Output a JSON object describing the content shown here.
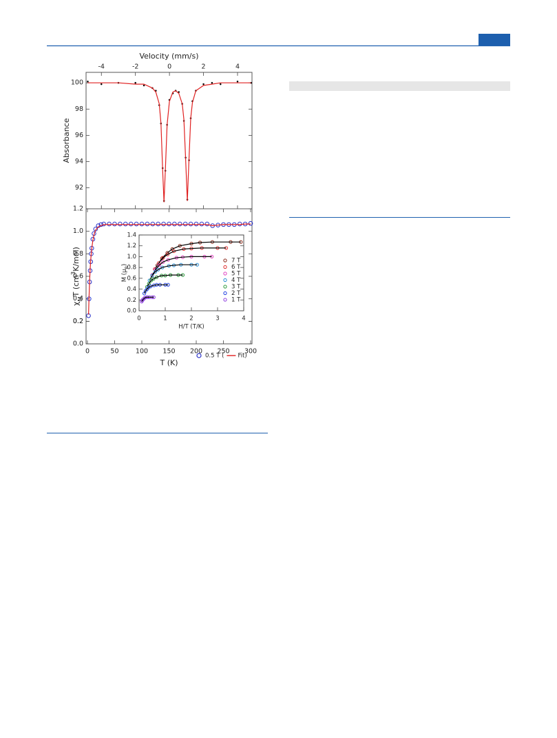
{
  "chart_data": [
    {
      "type": "scatter",
      "xlabel": "Velocity (mm/s)",
      "ylabel": "Absorbance",
      "xlim": [
        -4.9,
        4.85
      ],
      "ylim": [
        90.4,
        100.8
      ],
      "xticks": [
        -4,
        -2,
        0,
        2,
        4
      ],
      "yticks": [
        92,
        94,
        96,
        98,
        100
      ],
      "x": [
        -4.8,
        -4,
        -3,
        -2,
        -1.5,
        -1,
        -0.8,
        -0.6,
        -0.5,
        -0.4,
        -0.32,
        -0.24,
        -0.14,
        0,
        0.2,
        0.365,
        0.55,
        0.75,
        0.85,
        0.95,
        1.05,
        1.15,
        1.25,
        1.35,
        1.55,
        2,
        2.5,
        3,
        4,
        4.8
      ],
      "series": [
        {
          "color": "#000000",
          "marker": "dot",
          "values": [
            100.1,
            99.9,
            100.0,
            100.0,
            99.8,
            99.6,
            99.4,
            98.3,
            96.9,
            93.5,
            91.0,
            93.3,
            96.8,
            98.7,
            99.2,
            99.4,
            99.3,
            98.4,
            97.1,
            94.3,
            91.1,
            94.1,
            97.3,
            98.6,
            99.4,
            99.9,
            100.0,
            99.9,
            100.1,
            100.0
          ]
        },
        {
          "color": "#e02020",
          "marker": "line",
          "values": [
            100.0,
            100.0,
            100.0,
            99.9,
            99.9,
            99.6,
            99.3,
            98.4,
            96.9,
            93.4,
            90.9,
            93.4,
            96.8,
            98.6,
            99.3,
            99.4,
            99.2,
            98.4,
            97.2,
            94.2,
            91.0,
            94.2,
            97.3,
            98.5,
            99.4,
            99.8,
            99.9,
            100.0,
            100.0,
            100.0
          ]
        }
      ]
    },
    {
      "type": "scatter",
      "xlabel": "T (K)",
      "ylabel": [
        "χ",
        "M",
        "T (cm",
        "3",
        "K/mol)"
      ],
      "xlim": [
        -2.5,
        302.5
      ],
      "ylim": [
        0,
        1.2
      ],
      "xticks": [
        0,
        50,
        100,
        150,
        200,
        250,
        300
      ],
      "yticks": [
        {
          "value": 0,
          "label": "0.0"
        },
        0.2,
        0.4,
        0.6,
        0.8,
        {
          "value": 1,
          "label": "1.0"
        },
        0.2,
        1.2
      ],
      "legend": "lower right",
      "x": [
        2,
        3,
        4,
        5,
        6,
        7,
        8,
        10,
        12,
        15,
        20,
        25,
        30,
        40,
        50,
        60,
        70,
        80,
        90,
        100,
        110,
        120,
        130,
        140,
        150,
        160,
        170,
        180,
        190,
        200,
        210,
        220,
        230,
        240,
        250,
        260,
        270,
        280,
        290,
        300
      ],
      "series": [
        {
          "name": "0.5 T (",
          "color": "#2a32c8",
          "marker": "circle",
          "values": [
            0.25,
            0.4,
            0.55,
            0.65,
            0.73,
            0.8,
            0.85,
            0.93,
            0.98,
            1.02,
            1.05,
            1.06,
            1.065,
            1.065,
            1.065,
            1.065,
            1.065,
            1.065,
            1.065,
            1.065,
            1.065,
            1.065,
            1.065,
            1.065,
            1.065,
            1.065,
            1.065,
            1.065,
            1.065,
            1.065,
            1.065,
            1.065,
            1.05,
            1.055,
            1.06,
            1.06,
            1.06,
            1.065,
            1.065,
            1.07
          ]
        },
        {
          "name": "Fit)",
          "color": "#e02020",
          "marker": "line",
          "values": [
            0.26,
            0.41,
            0.55,
            0.66,
            0.74,
            0.8,
            0.85,
            0.92,
            0.97,
            1.01,
            1.04,
            1.05,
            1.06,
            1.06,
            1.06,
            1.06,
            1.06,
            1.06,
            1.06,
            1.06,
            1.06,
            1.06,
            1.06,
            1.06,
            1.06,
            1.06,
            1.06,
            1.06,
            1.06,
            1.06,
            1.06,
            1.06,
            1.05,
            1.055,
            1.06,
            1.06,
            1.06,
            1.06,
            1.065,
            1.065
          ]
        }
      ]
    },
    {
      "type": "scatter",
      "xlabel": "H/T (T/K)",
      "ylabel": [
        "M (μ",
        "B",
        ")"
      ],
      "xlim": [
        0,
        4
      ],
      "ylim": [
        0,
        1.4
      ],
      "xticks": [
        0,
        1,
        2,
        3,
        4
      ],
      "yticks": [
        {
          "value": 0,
          "label": "0.0"
        },
        0.2,
        0.4,
        0.6,
        0.8,
        {
          "value": 1,
          "label": "1.0"
        },
        1.2,
        1.4
      ],
      "legend": "center right",
      "fit_color": "#000000",
      "series": [
        {
          "name": "7 T",
          "color": "#8b2a1a",
          "marker": "circle",
          "x": [
            0.7,
            0.875,
            1.08,
            1.27,
            1.56,
            2.0,
            2.33,
            2.8,
            3.5,
            3.89
          ],
          "values": [
            0.84,
            0.97,
            1.07,
            1.14,
            1.2,
            1.24,
            1.26,
            1.27,
            1.27,
            1.27
          ]
        },
        {
          "name": "6 T",
          "color": "#e03030",
          "marker": "circle",
          "x": [
            0.6,
            0.75,
            0.92,
            1.09,
            1.33,
            1.71,
            2.0,
            2.4,
            3.0,
            3.33
          ],
          "values": [
            0.77,
            0.88,
            0.98,
            1.04,
            1.1,
            1.14,
            1.15,
            1.16,
            1.16,
            1.16
          ]
        },
        {
          "name": "5 T",
          "color": "#e040c0",
          "marker": "circle",
          "x": [
            0.5,
            0.625,
            0.77,
            0.91,
            1.11,
            1.43,
            1.67,
            2.0,
            2.5,
            2.78
          ],
          "values": [
            0.66,
            0.76,
            0.84,
            0.9,
            0.94,
            0.98,
            0.99,
            1.0,
            1.0,
            1.0
          ]
        },
        {
          "name": "4 T",
          "color": "#2a8fd6",
          "marker": "circle",
          "x": [
            0.4,
            0.5,
            0.62,
            0.73,
            0.89,
            1.14,
            1.33,
            1.6,
            2.0,
            2.22
          ],
          "values": [
            0.56,
            0.65,
            0.72,
            0.76,
            0.8,
            0.83,
            0.84,
            0.85,
            0.85,
            0.85
          ]
        },
        {
          "name": "3 T",
          "color": "#2a9a3a",
          "marker": "circle",
          "x": [
            0.3,
            0.375,
            0.46,
            0.55,
            0.67,
            0.86,
            1.0,
            1.2,
            1.5,
            1.67
          ],
          "values": [
            0.44,
            0.5,
            0.56,
            0.59,
            0.62,
            0.65,
            0.65,
            0.66,
            0.66,
            0.66
          ]
        },
        {
          "name": "2 T",
          "color": "#2040e0",
          "marker": "circle",
          "x": [
            0.2,
            0.25,
            0.31,
            0.36,
            0.44,
            0.57,
            0.67,
            0.8,
            1.0,
            1.11
          ],
          "values": [
            0.32,
            0.37,
            0.4,
            0.43,
            0.45,
            0.47,
            0.48,
            0.48,
            0.48,
            0.48
          ]
        },
        {
          "name": "1 T",
          "color": "#9040e0",
          "marker": "circle",
          "x": [
            0.1,
            0.125,
            0.15,
            0.18,
            0.22,
            0.29,
            0.33,
            0.4,
            0.5,
            0.56
          ],
          "values": [
            0.17,
            0.19,
            0.21,
            0.22,
            0.24,
            0.25,
            0.25,
            0.25,
            0.25,
            0.25
          ]
        }
      ]
    }
  ]
}
